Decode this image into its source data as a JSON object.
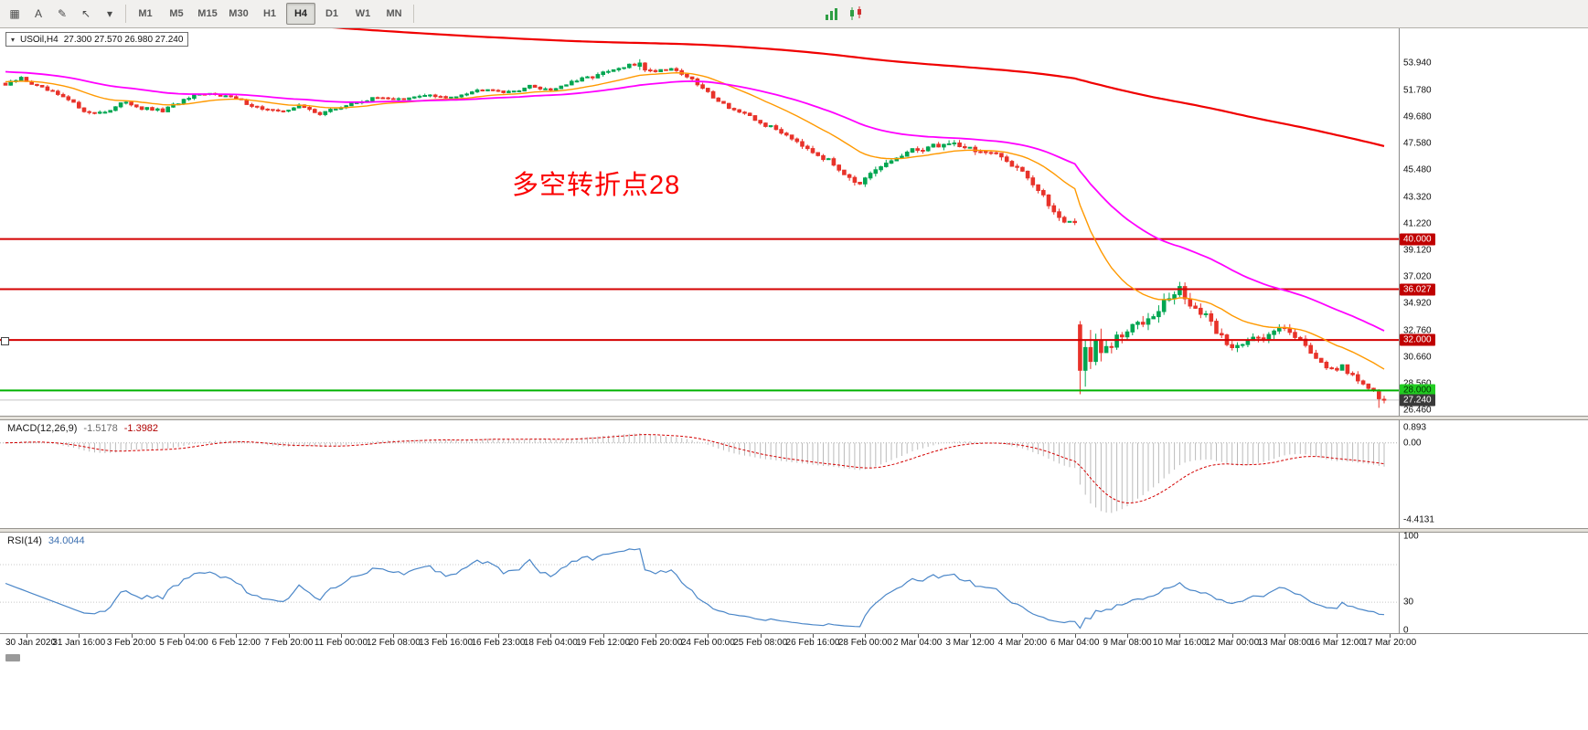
{
  "toolbar": {
    "left_icons": [
      {
        "name": "chart-grid-icon",
        "glyph": "▦"
      },
      {
        "name": "annotation-a-button",
        "glyph": "A"
      },
      {
        "name": "text-tool-icon",
        "glyph": "✎"
      },
      {
        "name": "cursor-tool-icon",
        "glyph": "↖"
      },
      {
        "name": "tool-dropdown-chevron-icon",
        "glyph": "▾"
      }
    ],
    "timeframes": [
      "M1",
      "M5",
      "M15",
      "M30",
      "H1",
      "H4",
      "D1",
      "W1",
      "MN"
    ],
    "active_timeframe": "H4",
    "right_icons": [
      {
        "name": "bar-chart-icon"
      },
      {
        "name": "candle-chart-icon"
      }
    ]
  },
  "symbol_box": {
    "collapse_glyph": "▾",
    "symbol": "USOil,H4",
    "ohlc": "27.300 27.570 26.980 27.240"
  },
  "annotation": {
    "text": "多空转折点28",
    "color": "#FB0000"
  },
  "price_scale": {
    "ticks": [
      "53.940",
      "51.780",
      "49.680",
      "47.580",
      "45.480",
      "43.320",
      "41.220",
      "39.120",
      "37.020",
      "34.920",
      "32.760",
      "30.660",
      "28.560",
      "26.460"
    ]
  },
  "levels": [
    {
      "label": "40.000",
      "value": 40.0,
      "line_color": "#D40000",
      "badge_bg": "#C00000",
      "badge_fg": "#FFFFFF"
    },
    {
      "label": "36.027",
      "value": 36.027,
      "line_color": "#D40000",
      "badge_bg": "#C00000",
      "badge_fg": "#FFFFFF"
    },
    {
      "label": "32.000",
      "value": 32.0,
      "line_color": "#D40000",
      "badge_bg": "#C00000",
      "badge_fg": "#FFFFFF"
    },
    {
      "label": "28.000",
      "value": 28.0,
      "line_color": "#00B200",
      "badge_bg": "#22CC22",
      "badge_fg": "#003300"
    }
  ],
  "current_price": {
    "label": "27.240",
    "value": 27.24,
    "badge_bg": "#3A3A3A",
    "badge_fg": "#FFFFFF"
  },
  "macd_panel": {
    "title": "MACD(12,26,9)",
    "value_main": "-1.5178",
    "value_signal": "-1.3982",
    "axis_ticks": [
      "0.893",
      "0.00",
      "-4.4131"
    ]
  },
  "rsi_panel": {
    "title": "RSI(14)",
    "value": "34.0044",
    "axis_ticks": [
      "100",
      "30",
      "0"
    ]
  },
  "time_axis": {
    "labels": [
      "30 Jan 2020",
      "31 Jan 16:00",
      "3 Feb 20:00",
      "5 Feb 04:00",
      "6 Feb 12:00",
      "7 Feb 20:00",
      "11 Feb 00:00",
      "12 Feb 08:00",
      "13 Feb 16:00",
      "16 Feb 23:00",
      "18 Feb 04:00",
      "19 Feb 12:00",
      "20 Feb 20:00",
      "24 Feb 00:00",
      "25 Feb 08:00",
      "26 Feb 16:00",
      "28 Feb 00:00",
      "2 Mar 04:00",
      "3 Mar 12:00",
      "4 Mar 20:00",
      "6 Mar 04:00",
      "9 Mar 08:00",
      "10 Mar 16:00",
      "12 Mar 00:00",
      "13 Mar 08:00",
      "16 Mar 12:00",
      "17 Mar 20:00"
    ]
  },
  "chart_data": {
    "type": "candlestick",
    "symbol": "USOil",
    "timeframe": "H4",
    "current_ohlc": {
      "open": 27.3,
      "high": 27.57,
      "low": 26.98,
      "close": 27.24
    },
    "bars": 264,
    "price_range": [
      26.0,
      56.7
    ],
    "up_color": "#00A651",
    "down_color": "#E8332A",
    "current_price": 27.24,
    "horizontal_levels": [
      40.0,
      36.027,
      32.0,
      28.0
    ],
    "close_keypoints": [
      [
        0,
        52.2
      ],
      [
        3,
        52.75
      ],
      [
        6,
        52.1
      ],
      [
        9,
        51.6
      ],
      [
        12,
        51.0
      ],
      [
        16,
        49.95
      ],
      [
        20,
        50.2
      ],
      [
        23,
        50.9
      ],
      [
        26,
        50.35
      ],
      [
        30,
        50.15
      ],
      [
        33,
        50.8
      ],
      [
        36,
        51.3
      ],
      [
        40,
        51.55
      ],
      [
        44,
        51.1
      ],
      [
        48,
        50.45
      ],
      [
        52,
        50.05
      ],
      [
        56,
        50.55
      ],
      [
        60,
        49.95
      ],
      [
        64,
        50.45
      ],
      [
        68,
        50.95
      ],
      [
        72,
        51.25
      ],
      [
        76,
        51.0
      ],
      [
        80,
        51.45
      ],
      [
        84,
        51.15
      ],
      [
        88,
        51.6
      ],
      [
        92,
        51.95
      ],
      [
        96,
        51.6
      ],
      [
        100,
        52.1
      ],
      [
        104,
        51.85
      ],
      [
        108,
        52.4
      ],
      [
        112,
        52.9
      ],
      [
        116,
        53.35
      ],
      [
        120,
        53.85
      ],
      [
        123,
        53.3
      ],
      [
        127,
        53.55
      ],
      [
        130,
        52.9
      ],
      [
        134,
        51.6
      ],
      [
        137,
        50.7
      ],
      [
        140,
        50.05
      ],
      [
        144,
        49.2
      ],
      [
        148,
        48.5
      ],
      [
        150,
        48.05
      ],
      [
        154,
        47.0
      ],
      [
        158,
        45.9
      ],
      [
        161,
        45.0
      ],
      [
        163,
        44.25
      ],
      [
        166,
        45.4
      ],
      [
        170,
        46.45
      ],
      [
        174,
        47.1
      ],
      [
        178,
        47.45
      ],
      [
        181,
        47.6
      ],
      [
        185,
        47.05
      ],
      [
        190,
        46.45
      ],
      [
        194,
        45.5
      ],
      [
        197,
        43.8
      ],
      [
        200,
        42.2
      ],
      [
        202,
        41.5
      ],
      [
        204,
        41.3
      ],
      [
        205,
        29.6
      ],
      [
        206,
        31.4
      ],
      [
        207,
        30.3
      ],
      [
        208,
        32.0
      ],
      [
        209,
        31.0
      ],
      [
        210,
        31.2
      ],
      [
        213,
        32.3
      ],
      [
        216,
        33.3
      ],
      [
        219,
        34.3
      ],
      [
        222,
        35.3
      ],
      [
        224,
        35.9
      ],
      [
        226,
        34.9
      ],
      [
        229,
        33.7
      ],
      [
        232,
        32.3
      ],
      [
        234,
        31.3
      ],
      [
        236,
        31.9
      ],
      [
        238,
        32.4
      ],
      [
        240,
        31.9
      ],
      [
        242,
        32.7
      ],
      [
        244,
        33.2
      ],
      [
        246,
        32.4
      ],
      [
        248,
        31.5
      ],
      [
        250,
        30.7
      ],
      [
        252,
        30.0
      ],
      [
        254,
        29.4
      ],
      [
        255,
        29.8
      ],
      [
        257,
        29.2
      ],
      [
        259,
        28.6
      ],
      [
        261,
        27.9
      ],
      [
        262,
        27.35
      ],
      [
        263,
        27.24
      ]
    ],
    "volatility_keypoints": [
      [
        0,
        0.28
      ],
      [
        100,
        0.26
      ],
      [
        118,
        0.34
      ],
      [
        130,
        0.3
      ],
      [
        150,
        0.38
      ],
      [
        163,
        0.5
      ],
      [
        200,
        0.55
      ],
      [
        204,
        0.5
      ],
      [
        205,
        1.5
      ],
      [
        212,
        1.1
      ],
      [
        224,
        0.95
      ],
      [
        235,
        0.7
      ],
      [
        250,
        0.6
      ],
      [
        263,
        0.45
      ]
    ],
    "bar_overrides": {
      "121": {
        "o": 53.7,
        "h": 54.25,
        "l": 53.4,
        "c": 53.95
      },
      "205": {
        "o": 33.2,
        "h": 33.5,
        "l": 27.7,
        "c": 29.6
      },
      "206": {
        "o": 29.6,
        "h": 32.0,
        "l": 28.3,
        "c": 31.4
      },
      "207": {
        "o": 31.4,
        "h": 32.8,
        "l": 29.7,
        "c": 30.3
      },
      "208": {
        "o": 30.3,
        "h": 32.5,
        "l": 30.0,
        "c": 32.0
      },
      "209": {
        "o": 32.0,
        "h": 32.9,
        "l": 30.3,
        "c": 31.0
      },
      "262": {
        "o": 27.9,
        "h": 28.1,
        "l": 26.62,
        "c": 27.35
      },
      "263": {
        "o": 27.3,
        "h": 27.57,
        "l": 26.98,
        "c": 27.24
      }
    },
    "moving_averages": [
      {
        "name": "fast-ma-line",
        "color": "#FF9900",
        "period": 21,
        "seed": 52.5,
        "width": 1.4
      },
      {
        "name": "mid-ma-line",
        "color": "#FF00FF",
        "period": 55,
        "seed": 53.3,
        "width": 1.8
      },
      {
        "name": "slow-ma-line",
        "color": "#F00000",
        "alpha": 0.005,
        "seed": 59.0,
        "width": 2.2
      }
    ],
    "macd": {
      "fast": 12,
      "slow": 26,
      "signal": 9,
      "display_range": [
        1.3,
        -4.9
      ],
      "histogram_color": "#BBBBBB",
      "signal_color": "#D40000",
      "current_macd": -1.5178,
      "current_signal": -1.3982
    },
    "rsi": {
      "period": 14,
      "display_range": [
        104,
        -3
      ],
      "line_color": "#4A86C8",
      "levels": [
        70,
        30
      ],
      "current": 34.0044
    }
  }
}
